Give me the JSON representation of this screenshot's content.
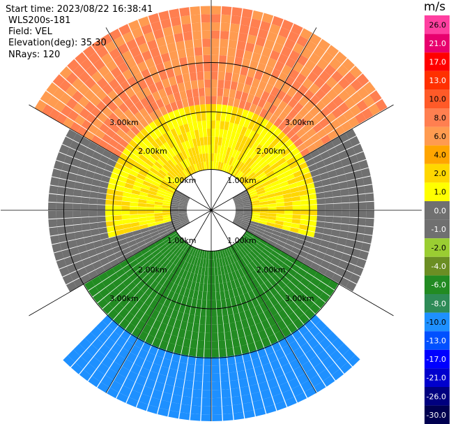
{
  "info": {
    "start_time": "Start time: 2023/08/22 16:38:41",
    "instrument": "WLS200s-181",
    "field": "Field: VEL",
    "elevation": "Elevation(deg): 35.30",
    "nrays": "NRays: 120"
  },
  "colorbar": {
    "unit": "m/s",
    "ticks": [
      "26.0",
      "21.0",
      "17.0",
      "13.0",
      "10.0",
      "8.0",
      "6.0",
      "4.0",
      "2.0",
      "1.0",
      "0.0",
      "-1.0",
      "-2.0",
      "-4.0",
      "-6.0",
      "-8.0",
      "-10.0",
      "-13.0",
      "-17.0",
      "-21.0",
      "-26.0",
      "-30.0"
    ],
    "colors": [
      "#ff3fa0",
      "#e8006e",
      "#ff0000",
      "#ff3000",
      "#ff5a28",
      "#ff7f50",
      "#ff9b50",
      "#ffa500",
      "#ffd700",
      "#ffff00",
      "#707070",
      "#707070",
      "#9acd32",
      "#6b8e23",
      "#228b22",
      "#2e8b57",
      "#1e90ff",
      "#0050ff",
      "#0000ff",
      "#0000cd",
      "#00007f",
      "#000050"
    ]
  },
  "chart_data": {
    "type": "ppi",
    "title": "",
    "field": "VEL",
    "n_rays": 120,
    "range_rings_km": [
      1.0,
      2.0,
      3.0
    ],
    "ring_labels": [
      "1.00km",
      "2.00km",
      "3.00km"
    ],
    "azimuth_spokes_deg": [
      0,
      30,
      60,
      90,
      120,
      150,
      180,
      210,
      240,
      270,
      300,
      330
    ],
    "velocity_sectors": [
      {
        "azimuth_range": [
          300,
          60
        ],
        "range_km": [
          1.3,
          2.5
        ],
        "velocity": 8.0
      },
      {
        "azimuth_range": [
          255,
          105
        ],
        "range_km": [
          0.5,
          1.3
        ],
        "velocity": 2.0
      },
      {
        "azimuth_range": [
          240,
          300
        ],
        "range_km": [
          0.3,
          2.0
        ],
        "velocity": 0.0
      },
      {
        "azimuth_range": [
          60,
          120
        ],
        "range_km": [
          0.3,
          2.0
        ],
        "velocity": 0.0
      },
      {
        "azimuth_range": [
          120,
          240
        ],
        "range_km": [
          0.5,
          1.8
        ],
        "velocity": -5.0
      },
      {
        "azimuth_range": [
          135,
          225
        ],
        "range_km": [
          1.8,
          2.6
        ],
        "velocity": -9.0
      }
    ],
    "noise_beyond_km": 2.6
  }
}
